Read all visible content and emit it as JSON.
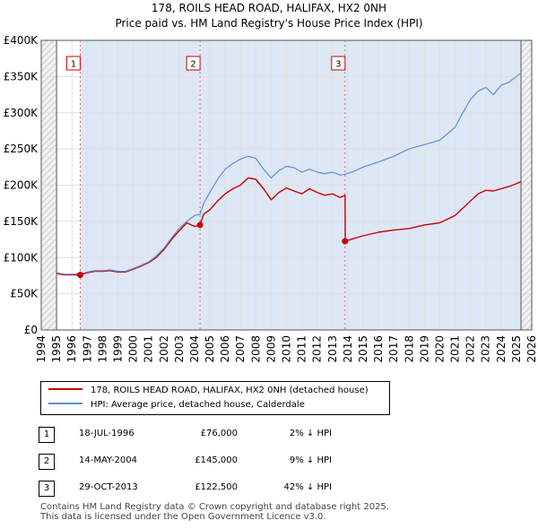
{
  "chart_data": {
    "type": "line",
    "title": "178, ROILS HEAD ROAD, HALIFAX, HX2 0NH",
    "subtitle": "Price paid vs. HM Land Registry's House Price Index (HPI)",
    "xlabel": "",
    "ylabel": "",
    "xlim": [
      1994,
      2026
    ],
    "ylim": [
      0,
      400000
    ],
    "x_ticks": [
      1994,
      1995,
      1996,
      1997,
      1998,
      1999,
      2000,
      2001,
      2002,
      2003,
      2004,
      2005,
      2006,
      2007,
      2008,
      2009,
      2010,
      2011,
      2012,
      2013,
      2014,
      2015,
      2016,
      2017,
      2018,
      2019,
      2020,
      2021,
      2022,
      2023,
      2024,
      2025,
      2026
    ],
    "x_tick_labels": [
      "1994",
      "1995",
      "1996",
      "1997",
      "1998",
      "1999",
      "2000",
      "2001",
      "2002",
      "2003",
      "2004",
      "2005",
      "2006",
      "2007",
      "2008",
      "2009",
      "2010",
      "2011",
      "2012",
      "2013",
      "2014",
      "2015",
      "2016",
      "2017",
      "2018",
      "2019",
      "2020",
      "2021",
      "2022",
      "2023",
      "2024",
      "2025",
      "2026"
    ],
    "y_ticks": [
      0,
      50000,
      100000,
      150000,
      200000,
      250000,
      300000,
      350000,
      400000
    ],
    "y_tick_labels": [
      "£0",
      "£50K",
      "£100K",
      "£150K",
      "£200K",
      "£250K",
      "£300K",
      "£350K",
      "£400K"
    ],
    "grid": true,
    "data_range": [
      1995,
      2025.3
    ],
    "series": [
      {
        "name": "178, ROILS HEAD ROAD, HALIFAX, HX2 0NH (detached house)",
        "color": "#cc0000",
        "x": [
          1995.0,
          1995.5,
          1996.0,
          1996.54,
          1997.0,
          1997.5,
          1998.0,
          1998.5,
          1999.0,
          1999.5,
          2000.0,
          2000.5,
          2001.0,
          2001.5,
          2002.0,
          2002.5,
          2003.0,
          2003.5,
          2004.0,
          2004.36,
          2004.6,
          2005.0,
          2005.5,
          2006.0,
          2006.5,
          2007.0,
          2007.5,
          2008.0,
          2008.5,
          2009.0,
          2009.5,
          2010.0,
          2010.5,
          2011.0,
          2011.5,
          2012.0,
          2012.5,
          2013.0,
          2013.5,
          2013.82,
          2013.84,
          2014.5,
          2015.0,
          2016.0,
          2017.0,
          2018.0,
          2019.0,
          2020.0,
          2021.0,
          2021.5,
          2022.0,
          2022.5,
          2023.0,
          2023.5,
          2024.0,
          2024.5,
          2025.0,
          2025.3
        ],
        "y": [
          78000,
          76000,
          76000,
          76000,
          79000,
          81000,
          81000,
          82000,
          80000,
          80000,
          84000,
          88000,
          93000,
          100000,
          111000,
          125000,
          137000,
          148000,
          143000,
          145000,
          160000,
          166000,
          178000,
          188000,
          195000,
          200000,
          210000,
          208000,
          195000,
          180000,
          190000,
          196000,
          192000,
          188000,
          195000,
          190000,
          186000,
          188000,
          183000,
          186000,
          122500,
          127000,
          130000,
          135000,
          138000,
          140000,
          145000,
          148000,
          158000,
          168000,
          178000,
          188000,
          193000,
          192000,
          195000,
          198000,
          202000,
          205000
        ]
      },
      {
        "name": "HPI: Average price, detached house, Calderdale",
        "color": "#5b8fd6",
        "x": [
          1995.0,
          1995.5,
          1996.0,
          1996.54,
          1997.0,
          1997.5,
          1998.0,
          1998.5,
          1999.0,
          1999.5,
          2000.0,
          2000.5,
          2001.0,
          2001.5,
          2002.0,
          2002.5,
          2003.0,
          2003.5,
          2004.0,
          2004.36,
          2004.6,
          2005.0,
          2005.5,
          2006.0,
          2006.5,
          2007.0,
          2007.5,
          2008.0,
          2008.5,
          2009.0,
          2009.5,
          2010.0,
          2010.5,
          2011.0,
          2011.5,
          2012.0,
          2012.5,
          2013.0,
          2013.5,
          2013.82,
          2014.5,
          2015.0,
          2016.0,
          2017.0,
          2018.0,
          2019.0,
          2020.0,
          2021.0,
          2021.5,
          2022.0,
          2022.5,
          2023.0,
          2023.5,
          2024.0,
          2024.5,
          2025.0,
          2025.3
        ],
        "y": [
          79000,
          77000,
          77000,
          77500,
          80000,
          82000,
          82000,
          83000,
          81000,
          81000,
          85000,
          89000,
          94000,
          102000,
          113000,
          127000,
          140000,
          150000,
          158000,
          160000,
          175000,
          190000,
          208000,
          222000,
          230000,
          236000,
          240000,
          237000,
          222000,
          210000,
          220000,
          226000,
          224000,
          218000,
          222000,
          218000,
          216000,
          218000,
          214000,
          215000,
          220000,
          225000,
          232000,
          240000,
          250000,
          256000,
          262000,
          280000,
          300000,
          318000,
          330000,
          335000,
          325000,
          338000,
          342000,
          350000,
          355000
        ]
      }
    ],
    "sale_markers": [
      {
        "label": "1",
        "x": 1996.54,
        "y": 76000
      },
      {
        "label": "2",
        "x": 2004.36,
        "y": 145000
      },
      {
        "label": "3",
        "x": 2013.82,
        "y": 122500
      }
    ]
  },
  "legend": {
    "property_label": "178, ROILS HEAD ROAD, HALIFAX, HX2 0NH (detached house)",
    "hpi_label": "HPI: Average price, detached house, Calderdale"
  },
  "sales": [
    {
      "num": "1",
      "date": "18-JUL-1996",
      "price": "£76,000",
      "hpi": "2% ↓ HPI"
    },
    {
      "num": "2",
      "date": "14-MAY-2004",
      "price": "£145,000",
      "hpi": "9% ↓ HPI"
    },
    {
      "num": "3",
      "date": "29-OCT-2013",
      "price": "£122,500",
      "hpi": "42% ↓ HPI"
    }
  ],
  "footer": {
    "line1": "Contains HM Land Registry data © Crown copyright and database right 2025.",
    "line2": "This data is licensed under the Open Government Licence v3.0."
  }
}
